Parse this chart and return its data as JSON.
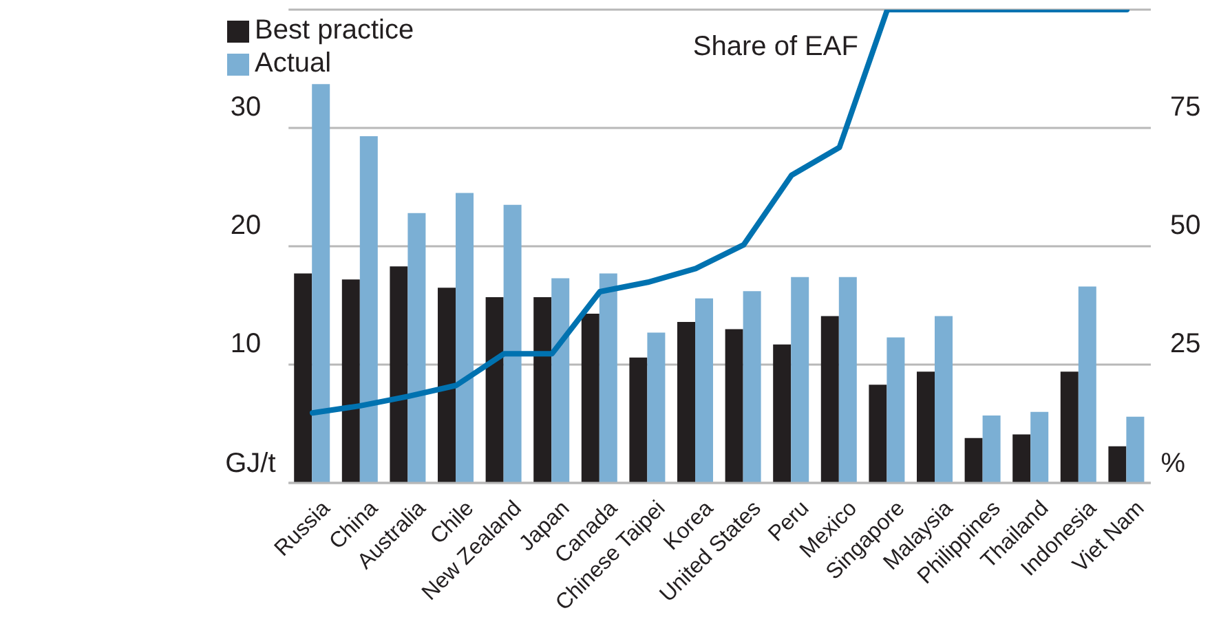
{
  "chart_data": {
    "type": "bar",
    "ylabel": "GJ/t",
    "y2label": "%",
    "categories": [
      "Russia",
      "China",
      "Australia",
      "Chile",
      "New Zealand",
      "Japan",
      "Canada",
      "Chinese Taipei",
      "Korea",
      "United States",
      "Peru",
      "Mexico",
      "Singapore",
      "Malaysia",
      "Philippines",
      "Thailand",
      "Indonesia",
      "Viet Nam"
    ],
    "series": [
      {
        "name": "Best practice",
        "color": "#231f20",
        "values": [
          17.7,
          17.2,
          18.3,
          16.5,
          15.7,
          15.7,
          14.3,
          10.6,
          13.6,
          13.0,
          11.7,
          14.1,
          8.3,
          9.4,
          3.8,
          4.1,
          9.4,
          3.1
        ]
      },
      {
        "name": "Actual",
        "color": "#7bafd4",
        "values": [
          33.7,
          29.3,
          22.8,
          24.5,
          23.5,
          17.3,
          17.7,
          12.7,
          15.6,
          16.2,
          17.4,
          17.4,
          12.3,
          14.1,
          5.7,
          6.0,
          16.6,
          5.6
        ]
      },
      {
        "name": "Share of EAF",
        "type": "line",
        "axis": "y2",
        "color": "#0072b0",
        "values": [
          14.8,
          16.3,
          18.3,
          20.6,
          27.3,
          27.3,
          40.4,
          42.4,
          45.3,
          50.3,
          65,
          70.9,
          100,
          100,
          100,
          100,
          100,
          100
        ]
      }
    ],
    "ylim": [
      0,
      40
    ],
    "yticks": [
      {
        "value": 0,
        "label": null
      },
      10,
      20,
      30,
      {
        "value": 40,
        "label": null
      }
    ],
    "y2lim": [
      0,
      100
    ],
    "y2ticks": [
      25,
      50,
      75
    ],
    "grid": "y",
    "legend": "top left",
    "marker": "none",
    "line_style": "solid"
  }
}
